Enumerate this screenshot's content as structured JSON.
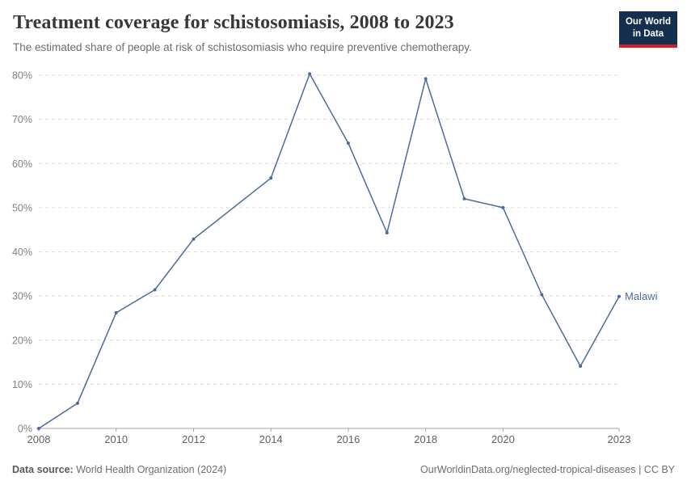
{
  "header": {
    "title": "Treatment coverage for schistosomiasis, 2008 to 2023",
    "subtitle": "The estimated share of people at risk of schistosomiasis who require preventive chemotherapy."
  },
  "logo": {
    "line1": "Our World",
    "line2": "in Data",
    "bg_color": "#14304e",
    "accent_color": "#cc2128"
  },
  "chart_data": {
    "type": "line",
    "title": "Treatment coverage for schistosomiasis, 2008 to 2023",
    "series": [
      {
        "name": "Malawi",
        "x": [
          2008,
          2009,
          2010,
          2011,
          2012,
          2014,
          2015,
          2016,
          2017,
          2018,
          2019,
          2020,
          2021,
          2022,
          2023
        ],
        "values": [
          0,
          5.7,
          26.2,
          31.4,
          42.9,
          56.7,
          80.3,
          64.6,
          44.3,
          79.2,
          52,
          50,
          30.3,
          14.1,
          29.9
        ]
      }
    ],
    "xlabel": "",
    "ylabel": "",
    "xlim": [
      2008,
      2023
    ],
    "ylim": [
      0,
      80
    ],
    "yticks": [
      0,
      10,
      20,
      30,
      40,
      50,
      60,
      70,
      80
    ],
    "ytick_suffix": "%",
    "xticks": [
      2008,
      2010,
      2012,
      2014,
      2016,
      2018,
      2020,
      2023
    ],
    "grid": true,
    "grid_style": "dashed",
    "line_color": "#4c6a9c",
    "axis_color": "#a5a5a5",
    "grid_color": "#dcdcdc",
    "legend_position": "end-of-line-label"
  },
  "footer": {
    "datasource_label": "Data source:",
    "datasource_value": " World Health Organization (2024)",
    "right_text": "OurWorldinData.org/neglected-tropical-diseases | CC BY"
  }
}
